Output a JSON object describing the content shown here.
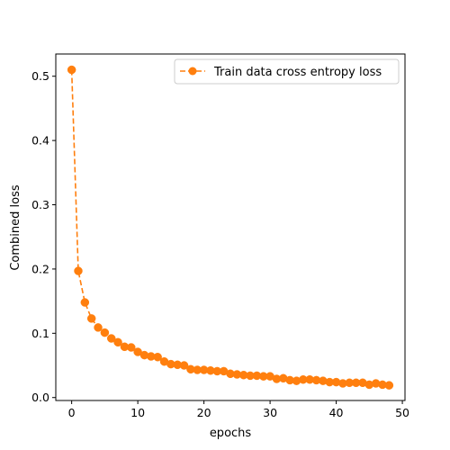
{
  "chart_data": {
    "type": "line",
    "title": "",
    "xlabel": "epochs",
    "ylabel": "Combined loss",
    "xlim": [
      -2.4,
      50.4
    ],
    "ylim": [
      -0.0046,
      0.5346
    ],
    "xticks": [
      0,
      10,
      20,
      30,
      40,
      50
    ],
    "yticks": [
      0.0,
      0.1,
      0.2,
      0.3,
      0.4,
      0.5
    ],
    "xtick_labels": [
      "0",
      "10",
      "20",
      "30",
      "40",
      "50"
    ],
    "ytick_labels": [
      "0.0",
      "0.1",
      "0.2",
      "0.3",
      "0.4",
      "0.5"
    ],
    "grid": false,
    "legend_position": "top-right",
    "series": [
      {
        "name": "Train data cross entropy loss",
        "color": "#ff7f0e",
        "line_style": "dashed",
        "marker": "circle",
        "x": [
          0,
          1,
          2,
          3,
          4,
          5,
          6,
          7,
          8,
          9,
          10,
          11,
          12,
          13,
          14,
          15,
          16,
          17,
          18,
          19,
          20,
          21,
          22,
          23,
          24,
          25,
          26,
          27,
          28,
          29,
          30,
          31,
          32,
          33,
          34,
          35,
          36,
          37,
          38,
          39,
          40,
          41,
          42,
          43,
          44,
          45,
          46,
          47,
          48
        ],
        "y": [
          0.51,
          0.197,
          0.148,
          0.123,
          0.109,
          0.101,
          0.092,
          0.086,
          0.079,
          0.078,
          0.071,
          0.066,
          0.064,
          0.063,
          0.056,
          0.052,
          0.051,
          0.05,
          0.044,
          0.043,
          0.043,
          0.042,
          0.041,
          0.041,
          0.037,
          0.036,
          0.035,
          0.034,
          0.034,
          0.033,
          0.033,
          0.029,
          0.03,
          0.027,
          0.026,
          0.028,
          0.028,
          0.027,
          0.026,
          0.024,
          0.024,
          0.022,
          0.023,
          0.023,
          0.023,
          0.02,
          0.022,
          0.02,
          0.019
        ]
      }
    ]
  }
}
